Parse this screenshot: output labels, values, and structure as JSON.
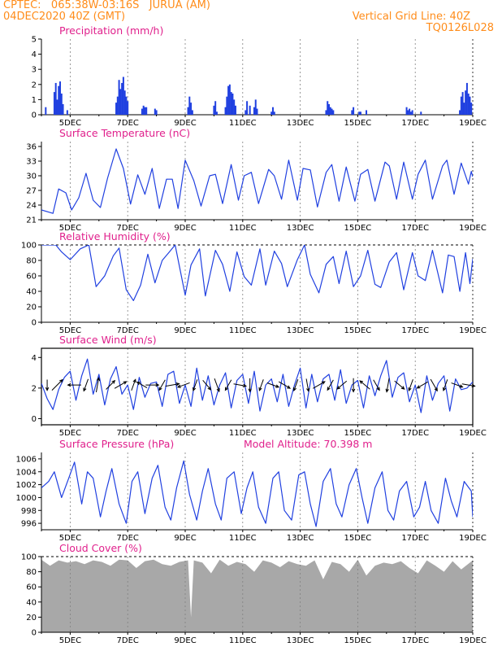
{
  "header": {
    "line1_left": "CPTEC:   065:38W-03:16S   JURUA (AM)",
    "line2_left": "04DEC2020 40Z (GMT)",
    "line1_right": "Vertical Grid Line: 40Z",
    "line2_right": "TQ0126L028"
  },
  "colors": {
    "header_text": "#ff8c1a",
    "panel_title": "#e0208c",
    "series_line": "#2040e0",
    "cloud_fill": "#a8a8a8",
    "grid": "#808080"
  },
  "x_axis": {
    "ticks": [
      "5DEC",
      "7DEC",
      "9DEC",
      "11DEC",
      "13DEC",
      "15DEC",
      "17DEC",
      "19DEC"
    ],
    "tick_days": [
      5,
      7,
      9,
      11,
      13,
      15,
      17,
      19
    ],
    "range_days": [
      4,
      19
    ]
  },
  "chart_data": [
    {
      "type": "bar",
      "title": "Precipitation (mm/h)",
      "ylim": [
        0,
        5
      ],
      "yticks": [
        0,
        1,
        2,
        3,
        4,
        5
      ],
      "x_days": [
        4.15,
        4.45,
        4.5,
        4.55,
        4.6,
        4.65,
        4.7,
        4.75,
        4.9,
        6.6,
        6.65,
        6.7,
        6.75,
        6.8,
        6.85,
        6.9,
        6.95,
        7.0,
        7.5,
        7.55,
        7.6,
        7.65,
        7.95,
        8.0,
        9.1,
        9.15,
        9.2,
        9.25,
        10.0,
        10.05,
        10.1,
        10.4,
        10.45,
        10.5,
        10.55,
        10.6,
        10.65,
        10.7,
        10.75,
        11.1,
        11.15,
        11.25,
        11.4,
        11.45,
        11.5,
        12.0,
        12.05,
        12.1,
        13.9,
        13.95,
        14.0,
        14.05,
        14.1,
        14.15,
        14.8,
        14.85,
        15.05,
        15.1,
        15.3,
        16.7,
        16.75,
        16.8,
        16.85,
        16.9,
        17.2,
        18.55,
        18.6,
        18.65,
        18.7,
        18.75,
        18.8,
        18.85,
        18.9,
        18.95
      ],
      "values": [
        0.5,
        1.5,
        2.1,
        1.0,
        1.9,
        2.2,
        1.4,
        0.7,
        0.3,
        0.8,
        1.2,
        2.3,
        1.7,
        2.1,
        2.5,
        1.6,
        1.2,
        0.9,
        0.4,
        0.6,
        0.5,
        0.5,
        0.4,
        0.3,
        0.5,
        1.2,
        0.8,
        0.3,
        0.6,
        0.9,
        0.2,
        0.5,
        1.2,
        1.9,
        2.0,
        1.5,
        1.4,
        1.0,
        0.6,
        0.3,
        0.9,
        0.6,
        0.5,
        1.0,
        0.4,
        0.2,
        0.5,
        0.2,
        0.3,
        0.9,
        0.7,
        0.5,
        0.4,
        0.3,
        0.3,
        0.5,
        0.2,
        0.2,
        0.3,
        0.5,
        0.3,
        0.4,
        0.2,
        0.3,
        0.2,
        0.3,
        1.2,
        1.5,
        0.8,
        1.6,
        2.1,
        1.4,
        1.2,
        0.8
      ]
    },
    {
      "type": "line",
      "title": "Surface Temperature (nC)",
      "ylim": [
        21,
        37
      ],
      "yticks": [
        21,
        24,
        27,
        30,
        33,
        36
      ],
      "x_days": [
        4.0,
        4.4,
        4.6,
        4.85,
        5.05,
        5.3,
        5.55,
        5.8,
        6.05,
        6.3,
        6.6,
        6.85,
        7.1,
        7.35,
        7.6,
        7.85,
        8.1,
        8.35,
        8.55,
        8.75,
        9.0,
        9.3,
        9.55,
        9.85,
        10.05,
        10.3,
        10.6,
        10.85,
        11.05,
        11.3,
        11.55,
        11.9,
        12.1,
        12.35,
        12.6,
        12.9,
        13.1,
        13.35,
        13.6,
        13.9,
        14.1,
        14.35,
        14.6,
        14.9,
        15.1,
        15.35,
        15.6,
        15.95,
        16.1,
        16.35,
        16.6,
        16.9,
        17.1,
        17.35,
        17.6,
        17.95,
        18.1,
        18.35,
        18.6,
        18.85,
        18.95,
        19.0
      ],
      "values": [
        23.0,
        22.3,
        27.3,
        26.5,
        23.0,
        25.5,
        30.5,
        25.0,
        23.5,
        29.5,
        35.5,
        31.5,
        24.2,
        30.2,
        26.2,
        31.5,
        23.3,
        29.3,
        29.3,
        23.3,
        33.2,
        29.0,
        23.8,
        30.0,
        30.3,
        24.3,
        32.3,
        25.0,
        30.0,
        30.7,
        24.3,
        31.3,
        30.0,
        25.2,
        33.2,
        25.0,
        31.5,
        31.2,
        23.6,
        30.7,
        32.3,
        24.8,
        31.8,
        24.8,
        30.3,
        31.3,
        24.8,
        32.8,
        32.0,
        25.2,
        32.8,
        25.2,
        30.3,
        33.2,
        25.2,
        32.0,
        33.2,
        26.2,
        32.6,
        28.3,
        30.9,
        29.8
      ]
    },
    {
      "type": "line",
      "title": "Relative Humidity (%)",
      "ylim": [
        0,
        100
      ],
      "yticks": [
        0,
        20,
        40,
        60,
        80,
        100
      ],
      "x_days": [
        4.0,
        4.3,
        4.5,
        4.7,
        5.0,
        5.35,
        5.65,
        5.9,
        6.2,
        6.5,
        6.7,
        6.95,
        7.2,
        7.45,
        7.7,
        7.95,
        8.2,
        8.45,
        8.65,
        9.0,
        9.2,
        9.5,
        9.7,
        10.05,
        10.3,
        10.55,
        10.8,
        11.05,
        11.3,
        11.6,
        11.8,
        12.1,
        12.35,
        12.55,
        12.9,
        13.15,
        13.35,
        13.65,
        13.9,
        14.15,
        14.35,
        14.6,
        14.85,
        15.1,
        15.35,
        15.6,
        15.8,
        16.1,
        16.35,
        16.6,
        16.9,
        17.1,
        17.35,
        17.6,
        17.95,
        18.15,
        18.35,
        18.55,
        18.75,
        18.9,
        19.0
      ],
      "values": [
        100,
        100,
        100,
        91,
        81,
        95,
        100,
        46,
        60,
        86,
        96,
        42,
        28,
        48,
        88,
        51,
        80,
        91,
        100,
        35,
        74,
        95,
        34,
        93,
        75,
        40,
        91,
        59,
        48,
        95,
        48,
        92,
        76,
        46,
        81,
        100,
        62,
        38,
        75,
        85,
        50,
        92,
        46,
        60,
        93,
        49,
        45,
        78,
        90,
        42,
        90,
        60,
        54,
        93,
        38,
        87,
        85,
        40,
        90,
        50,
        82
      ]
    },
    {
      "type": "line",
      "title": "Surface Wind (m/s)",
      "ylim": [
        -0.4,
        4.6
      ],
      "yticks": [
        0,
        2,
        4
      ],
      "x_days": [
        4.0,
        4.2,
        4.4,
        4.6,
        4.8,
        5.0,
        5.2,
        5.4,
        5.6,
        5.8,
        6.0,
        6.2,
        6.4,
        6.6,
        6.8,
        7.0,
        7.2,
        7.4,
        7.6,
        7.8,
        8.0,
        8.2,
        8.4,
        8.6,
        8.8,
        9.0,
        9.2,
        9.4,
        9.6,
        9.8,
        10.0,
        10.2,
        10.4,
        10.6,
        10.8,
        11.0,
        11.2,
        11.4,
        11.6,
        11.8,
        12.0,
        12.2,
        12.4,
        12.6,
        12.8,
        13.0,
        13.2,
        13.4,
        13.6,
        13.8,
        14.0,
        14.2,
        14.4,
        14.6,
        14.8,
        15.0,
        15.2,
        15.4,
        15.6,
        15.8,
        16.0,
        16.2,
        16.4,
        16.6,
        16.8,
        17.0,
        17.2,
        17.4,
        17.6,
        17.8,
        18.0,
        18.2,
        18.4,
        18.6,
        18.8,
        19.0
      ],
      "values": [
        2.3,
        1.3,
        0.6,
        1.9,
        2.7,
        3.1,
        1.2,
        2.8,
        3.9,
        1.6,
        2.9,
        0.9,
        2.6,
        3.4,
        1.6,
        2.2,
        0.6,
        2.7,
        1.4,
        2.3,
        2.4,
        0.8,
        2.9,
        3.1,
        1.0,
        2.2,
        0.8,
        3.3,
        1.2,
        2.8,
        0.9,
        2.2,
        3.0,
        0.7,
        2.5,
        2.9,
        1.0,
        3.1,
        0.5,
        2.2,
        2.6,
        1.1,
        2.9,
        0.8,
        2.2,
        3.3,
        0.7,
        2.9,
        1.1,
        2.6,
        2.9,
        1.2,
        3.2,
        1.0,
        2.2,
        2.5,
        0.7,
        2.8,
        1.5,
        2.8,
        3.8,
        1.4,
        2.7,
        3.0,
        1.1,
        2.2,
        0.4,
        2.8,
        1.2,
        2.3,
        2.8,
        0.5,
        2.6,
        1.9,
        2.0,
        2.4
      ],
      "arrows": {
        "x_days": [
          4.2,
          4.55,
          5.15,
          5.55,
          5.95,
          6.4,
          6.75,
          7.2,
          7.5,
          7.85,
          8.2,
          8.55,
          8.95,
          9.35,
          9.75,
          10.1,
          10.5,
          10.9,
          11.25,
          11.65,
          12.05,
          12.45,
          12.85,
          13.25,
          13.65,
          14.05,
          14.45,
          14.85,
          15.25,
          15.65,
          16.05,
          16.45,
          16.85,
          17.25,
          17.65,
          18.05,
          18.45,
          18.85
        ],
        "direction_deg": [
          180,
          45,
          270,
          200,
          10,
          45,
          60,
          20,
          300,
          90,
          210,
          80,
          250,
          200,
          140,
          160,
          210,
          100,
          180,
          200,
          110,
          120,
          200,
          170,
          60,
          210,
          230,
          180,
          310,
          150,
          190,
          130,
          200,
          240,
          150,
          200,
          110,
          100
        ],
        "speed": [
          1.3,
          2.6,
          2.1,
          1.9,
          2.5,
          1.8,
          2.2,
          1.6,
          1.5,
          2.0,
          1.7,
          2.3,
          1.9,
          1.6,
          1.8,
          2.2,
          1.7,
          1.9,
          2.1,
          1.6,
          1.8,
          2.0,
          1.7,
          1.9,
          2.2,
          1.6,
          1.8,
          2.2,
          2.0,
          1.7,
          2.3,
          1.9,
          1.7,
          1.8,
          2.1,
          1.6,
          1.7,
          2.0
        ]
      }
    },
    {
      "type": "line",
      "title": "Surface Pressure (hPa)",
      "subtitle": "Model Altitude: 70.398 m",
      "ylim": [
        995,
        1007
      ],
      "yticks": [
        996,
        998,
        1000,
        1002,
        1004,
        1006
      ],
      "x_days": [
        4.0,
        4.25,
        4.45,
        4.7,
        4.95,
        5.15,
        5.4,
        5.6,
        5.8,
        6.05,
        6.25,
        6.45,
        6.7,
        6.95,
        7.15,
        7.35,
        7.6,
        7.85,
        8.05,
        8.3,
        8.5,
        8.7,
        8.95,
        9.15,
        9.4,
        9.6,
        9.8,
        10.05,
        10.25,
        10.45,
        10.7,
        10.95,
        11.15,
        11.35,
        11.55,
        11.8,
        12.05,
        12.25,
        12.45,
        12.7,
        12.95,
        13.15,
        13.35,
        13.55,
        13.8,
        14.05,
        14.25,
        14.45,
        14.7,
        14.95,
        15.15,
        15.35,
        15.6,
        15.85,
        16.05,
        16.25,
        16.45,
        16.7,
        16.95,
        17.15,
        17.35,
        17.55,
        17.8,
        18.05,
        18.25,
        18.45,
        18.7,
        18.95,
        19.0
      ],
      "values": [
        1001.5,
        1002.5,
        1004.0,
        1000.0,
        1003.0,
        1005.5,
        999.0,
        1004.0,
        1003.0,
        997.0,
        1001.0,
        1004.5,
        999.0,
        996.0,
        1002.5,
        1004.0,
        997.5,
        1003.0,
        1005.0,
        998.5,
        996.5,
        1001.5,
        1005.7,
        1000.5,
        996.5,
        1001.0,
        1004.5,
        999.0,
        996.5,
        1003.0,
        1004.0,
        997.5,
        1001.5,
        1004.0,
        998.5,
        996.0,
        1003.0,
        1004.0,
        998.0,
        996.5,
        1003.5,
        1004.0,
        999.0,
        995.5,
        1002.5,
        1004.5,
        999.0,
        997.0,
        1002.0,
        1004.5,
        1000.0,
        996.0,
        1001.5,
        1004.0,
        998.0,
        996.5,
        1001.0,
        1002.5,
        997.0,
        998.5,
        1002.5,
        998.0,
        996.0,
        1003.0,
        999.5,
        997.0,
        1002.5,
        1001.0,
        997.0
      ]
    },
    {
      "type": "area",
      "title": "Cloud Cover (%)",
      "ylim": [
        0,
        100
      ],
      "yticks": [
        0,
        20,
        40,
        60,
        80,
        100
      ],
      "x_days": [
        4.0,
        4.3,
        4.6,
        4.9,
        5.2,
        5.5,
        5.8,
        6.1,
        6.4,
        6.7,
        7.0,
        7.3,
        7.6,
        7.9,
        8.2,
        8.5,
        8.8,
        9.1,
        9.2,
        9.3,
        9.6,
        9.9,
        10.2,
        10.5,
        10.8,
        11.1,
        11.4,
        11.7,
        12.0,
        12.3,
        12.6,
        12.9,
        13.2,
        13.5,
        13.8,
        14.1,
        14.4,
        14.7,
        15.0,
        15.3,
        15.6,
        15.9,
        16.2,
        16.5,
        16.8,
        17.1,
        17.4,
        17.7,
        18.0,
        18.3,
        18.6,
        18.9,
        19.0
      ],
      "values": [
        96,
        88,
        95,
        92,
        94,
        90,
        95,
        93,
        88,
        96,
        95,
        85,
        94,
        96,
        90,
        88,
        93,
        95,
        20,
        95,
        92,
        78,
        96,
        88,
        93,
        90,
        80,
        95,
        92,
        86,
        94,
        90,
        88,
        95,
        70,
        93,
        90,
        80,
        96,
        75,
        88,
        92,
        90,
        94,
        85,
        78,
        95,
        88,
        80,
        94,
        83,
        92,
        95
      ]
    }
  ]
}
